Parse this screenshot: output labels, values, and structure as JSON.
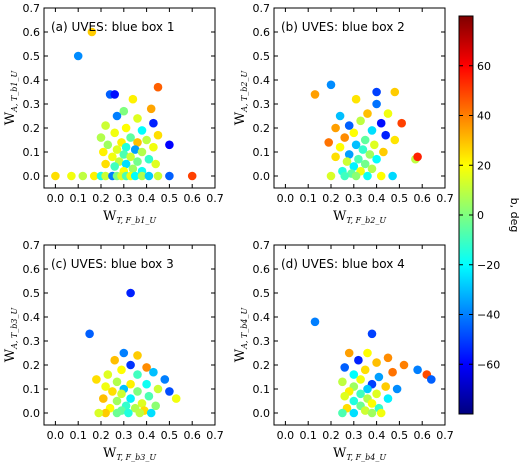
{
  "chart_data": [
    {
      "type": "scatter",
      "title": "(a) UVES: blue box 1",
      "xlabel": "W",
      "xlabel_sub": "T, F_b1_U",
      "ylabel": "W",
      "ylabel_sub": "A, T_b1_U",
      "xlim": [
        -0.05,
        0.7
      ],
      "ylim": [
        -0.05,
        0.7
      ],
      "xticks": [
        "0.0",
        "0.1",
        "0.2",
        "0.3",
        "0.4",
        "0.5",
        "0.6",
        "0.7"
      ],
      "yticks": [
        "0.0",
        "0.1",
        "0.2",
        "0.3",
        "0.4",
        "0.5",
        "0.6",
        "0.7"
      ],
      "points": [
        {
          "x": 0.16,
          "y": 0.6,
          "b": 28
        },
        {
          "x": 0.1,
          "y": 0.5,
          "b": -38
        },
        {
          "x": 0.45,
          "y": 0.37,
          "b": 45
        },
        {
          "x": 0.24,
          "y": 0.34,
          "b": -45
        },
        {
          "x": 0.26,
          "y": 0.34,
          "b": -58
        },
        {
          "x": 0.34,
          "y": 0.32,
          "b": 22
        },
        {
          "x": 0.42,
          "y": 0.28,
          "b": 34
        },
        {
          "x": 0.3,
          "y": 0.27,
          "b": 0
        },
        {
          "x": 0.27,
          "y": 0.25,
          "b": -40
        },
        {
          "x": 0.36,
          "y": 0.24,
          "b": 15
        },
        {
          "x": 0.43,
          "y": 0.22,
          "b": -55
        },
        {
          "x": 0.22,
          "y": 0.21,
          "b": 12
        },
        {
          "x": 0.31,
          "y": 0.2,
          "b": 20
        },
        {
          "x": 0.38,
          "y": 0.19,
          "b": -20
        },
        {
          "x": 0.26,
          "y": 0.18,
          "b": 18
        },
        {
          "x": 0.45,
          "y": 0.17,
          "b": 25
        },
        {
          "x": 0.2,
          "y": 0.16,
          "b": 8
        },
        {
          "x": 0.33,
          "y": 0.16,
          "b": -5
        },
        {
          "x": 0.4,
          "y": 0.15,
          "b": 10
        },
        {
          "x": 0.29,
          "y": 0.14,
          "b": 22
        },
        {
          "x": 0.36,
          "y": 0.14,
          "b": 30
        },
        {
          "x": 0.23,
          "y": 0.13,
          "b": 5
        },
        {
          "x": 0.5,
          "y": 0.13,
          "b": -60
        },
        {
          "x": 0.31,
          "y": 0.12,
          "b": -15
        },
        {
          "x": 0.43,
          "y": 0.12,
          "b": 18
        },
        {
          "x": 0.27,
          "y": 0.11,
          "b": 15
        },
        {
          "x": 0.35,
          "y": 0.11,
          "b": -35
        },
        {
          "x": 0.21,
          "y": 0.1,
          "b": 22
        },
        {
          "x": 0.38,
          "y": 0.1,
          "b": 8
        },
        {
          "x": 0.3,
          "y": 0.09,
          "b": -8
        },
        {
          "x": 0.25,
          "y": 0.08,
          "b": 18
        },
        {
          "x": 0.33,
          "y": 0.08,
          "b": 12
        },
        {
          "x": 0.41,
          "y": 0.07,
          "b": -12
        },
        {
          "x": 0.28,
          "y": 0.06,
          "b": 10
        },
        {
          "x": 0.36,
          "y": 0.06,
          "b": -2
        },
        {
          "x": 0.22,
          "y": 0.05,
          "b": 25
        },
        {
          "x": 0.31,
          "y": 0.05,
          "b": -25
        },
        {
          "x": 0.44,
          "y": 0.05,
          "b": 15
        },
        {
          "x": 0.26,
          "y": 0.04,
          "b": -10
        },
        {
          "x": 0.34,
          "y": 0.03,
          "b": 5
        },
        {
          "x": 0.38,
          "y": 0.02,
          "b": -18
        },
        {
          "x": 0.3,
          "y": 0.02,
          "b": 20
        },
        {
          "x": 0.0,
          "y": 0.0,
          "b": 25
        },
        {
          "x": 0.07,
          "y": 0.0,
          "b": 18
        },
        {
          "x": 0.12,
          "y": 0.0,
          "b": 10
        },
        {
          "x": 0.17,
          "y": 0.0,
          "b": 22
        },
        {
          "x": 0.2,
          "y": 0.0,
          "b": -15
        },
        {
          "x": 0.22,
          "y": 0.0,
          "b": 12
        },
        {
          "x": 0.25,
          "y": 0.0,
          "b": -40
        },
        {
          "x": 0.27,
          "y": 0.0,
          "b": 0
        },
        {
          "x": 0.29,
          "y": 0.0,
          "b": 15
        },
        {
          "x": 0.31,
          "y": 0.0,
          "b": -8
        },
        {
          "x": 0.33,
          "y": 0.0,
          "b": 18
        },
        {
          "x": 0.35,
          "y": 0.0,
          "b": -20
        },
        {
          "x": 0.38,
          "y": 0.0,
          "b": 8
        },
        {
          "x": 0.41,
          "y": 0.0,
          "b": -28
        },
        {
          "x": 0.45,
          "y": 0.0,
          "b": 12
        },
        {
          "x": 0.5,
          "y": 0.0,
          "b": -45
        },
        {
          "x": 0.6,
          "y": 0.0,
          "b": 50
        }
      ]
    },
    {
      "type": "scatter",
      "title": "(b) UVES: blue box 2",
      "xlabel": "W",
      "xlabel_sub": "T, F_b2_U",
      "ylabel": "W",
      "ylabel_sub": "A, T_b2_U",
      "xlim": [
        -0.05,
        0.7
      ],
      "ylim": [
        -0.05,
        0.7
      ],
      "xticks": [
        "0.0",
        "0.1",
        "0.2",
        "0.3",
        "0.4",
        "0.5",
        "0.6",
        "0.7"
      ],
      "yticks": [
        "0.0",
        "0.1",
        "0.2",
        "0.3",
        "0.4",
        "0.5",
        "0.6",
        "0.7"
      ],
      "points": [
        {
          "x": 0.2,
          "y": 0.38,
          "b": -38
        },
        {
          "x": 0.13,
          "y": 0.34,
          "b": 35
        },
        {
          "x": 0.4,
          "y": 0.35,
          "b": -50
        },
        {
          "x": 0.48,
          "y": 0.35,
          "b": 28
        },
        {
          "x": 0.31,
          "y": 0.32,
          "b": 24
        },
        {
          "x": 0.4,
          "y": 0.3,
          "b": -42
        },
        {
          "x": 0.36,
          "y": 0.26,
          "b": 30
        },
        {
          "x": 0.45,
          "y": 0.26,
          "b": 18
        },
        {
          "x": 0.24,
          "y": 0.25,
          "b": -30
        },
        {
          "x": 0.33,
          "y": 0.23,
          "b": 10
        },
        {
          "x": 0.42,
          "y": 0.22,
          "b": -58
        },
        {
          "x": 0.51,
          "y": 0.22,
          "b": 50
        },
        {
          "x": 0.28,
          "y": 0.21,
          "b": -45
        },
        {
          "x": 0.22,
          "y": 0.2,
          "b": 35
        },
        {
          "x": 0.38,
          "y": 0.19,
          "b": -25
        },
        {
          "x": 0.3,
          "y": 0.18,
          "b": 20
        },
        {
          "x": 0.44,
          "y": 0.17,
          "b": -55
        },
        {
          "x": 0.26,
          "y": 0.16,
          "b": 38
        },
        {
          "x": 0.35,
          "y": 0.15,
          "b": -5
        },
        {
          "x": 0.48,
          "y": 0.15,
          "b": 24
        },
        {
          "x": 0.19,
          "y": 0.14,
          "b": 42
        },
        {
          "x": 0.31,
          "y": 0.13,
          "b": -30
        },
        {
          "x": 0.39,
          "y": 0.13,
          "b": 15
        },
        {
          "x": 0.24,
          "y": 0.12,
          "b": 20
        },
        {
          "x": 0.34,
          "y": 0.11,
          "b": -12
        },
        {
          "x": 0.43,
          "y": 0.1,
          "b": 28
        },
        {
          "x": 0.28,
          "y": 0.09,
          "b": -35
        },
        {
          "x": 0.37,
          "y": 0.09,
          "b": 5
        },
        {
          "x": 0.22,
          "y": 0.08,
          "b": 25
        },
        {
          "x": 0.32,
          "y": 0.07,
          "b": -8
        },
        {
          "x": 0.4,
          "y": 0.07,
          "b": -20
        },
        {
          "x": 0.57,
          "y": 0.07,
          "b": 10
        },
        {
          "x": 0.58,
          "y": 0.08,
          "b": 55
        },
        {
          "x": 0.27,
          "y": 0.06,
          "b": 12
        },
        {
          "x": 0.35,
          "y": 0.05,
          "b": -2
        },
        {
          "x": 0.3,
          "y": 0.04,
          "b": -22
        },
        {
          "x": 0.38,
          "y": 0.03,
          "b": 8
        },
        {
          "x": 0.25,
          "y": 0.02,
          "b": -15
        },
        {
          "x": 0.33,
          "y": 0.02,
          "b": 18
        },
        {
          "x": 0.29,
          "y": 0.01,
          "b": -5
        },
        {
          "x": 0.36,
          "y": 0.0,
          "b": -18
        },
        {
          "x": 0.31,
          "y": 0.0,
          "b": 2
        },
        {
          "x": 0.42,
          "y": 0.0,
          "b": 20
        },
        {
          "x": 0.26,
          "y": 0.0,
          "b": -10
        },
        {
          "x": 0.2,
          "y": 0.0,
          "b": 14
        },
        {
          "x": 0.47,
          "y": 0.0,
          "b": -26
        }
      ]
    },
    {
      "type": "scatter",
      "title": "(c) UVES: blue box 3",
      "xlabel": "W",
      "xlabel_sub": "T, F_b3_U",
      "ylabel": "W",
      "ylabel_sub": "A, T_b3_U",
      "xlim": [
        -0.05,
        0.7
      ],
      "ylim": [
        -0.05,
        0.7
      ],
      "xticks": [
        "0.0",
        "0.1",
        "0.2",
        "0.3",
        "0.4",
        "0.5",
        "0.6",
        "0.7"
      ],
      "yticks": [
        "0.0",
        "0.1",
        "0.2",
        "0.3",
        "0.4",
        "0.5",
        "0.6",
        "0.7"
      ],
      "points": [
        {
          "x": 0.33,
          "y": 0.5,
          "b": -55
        },
        {
          "x": 0.15,
          "y": 0.33,
          "b": -45
        },
        {
          "x": 0.3,
          "y": 0.25,
          "b": -40
        },
        {
          "x": 0.36,
          "y": 0.24,
          "b": 28
        },
        {
          "x": 0.26,
          "y": 0.22,
          "b": 30
        },
        {
          "x": 0.33,
          "y": 0.2,
          "b": -52
        },
        {
          "x": 0.4,
          "y": 0.19,
          "b": 38
        },
        {
          "x": 0.29,
          "y": 0.18,
          "b": 20
        },
        {
          "x": 0.43,
          "y": 0.17,
          "b": -30
        },
        {
          "x": 0.23,
          "y": 0.16,
          "b": 15
        },
        {
          "x": 0.36,
          "y": 0.16,
          "b": -10
        },
        {
          "x": 0.18,
          "y": 0.14,
          "b": 25
        },
        {
          "x": 0.48,
          "y": 0.14,
          "b": -40
        },
        {
          "x": 0.27,
          "y": 0.13,
          "b": 8
        },
        {
          "x": 0.33,
          "y": 0.12,
          "b": 22
        },
        {
          "x": 0.4,
          "y": 0.12,
          "b": -18
        },
        {
          "x": 0.22,
          "y": 0.11,
          "b": 18
        },
        {
          "x": 0.3,
          "y": 0.1,
          "b": -30
        },
        {
          "x": 0.45,
          "y": 0.1,
          "b": 12
        },
        {
          "x": 0.25,
          "y": 0.09,
          "b": 25
        },
        {
          "x": 0.36,
          "y": 0.09,
          "b": 0
        },
        {
          "x": 0.5,
          "y": 0.09,
          "b": -48
        },
        {
          "x": 0.29,
          "y": 0.08,
          "b": 12
        },
        {
          "x": 0.41,
          "y": 0.07,
          "b": -8
        },
        {
          "x": 0.53,
          "y": 0.06,
          "b": 18
        },
        {
          "x": 0.21,
          "y": 0.06,
          "b": 30
        },
        {
          "x": 0.33,
          "y": 0.06,
          "b": -22
        },
        {
          "x": 0.27,
          "y": 0.05,
          "b": 5
        },
        {
          "x": 0.38,
          "y": 0.04,
          "b": 15
        },
        {
          "x": 0.31,
          "y": 0.03,
          "b": -12
        },
        {
          "x": 0.44,
          "y": 0.03,
          "b": 2
        },
        {
          "x": 0.24,
          "y": 0.02,
          "b": 20
        },
        {
          "x": 0.35,
          "y": 0.02,
          "b": 8
        },
        {
          "x": 0.29,
          "y": 0.01,
          "b": -5
        },
        {
          "x": 0.39,
          "y": 0.01,
          "b": 25
        },
        {
          "x": 0.22,
          "y": 0.0,
          "b": 28
        },
        {
          "x": 0.32,
          "y": 0.0,
          "b": -15
        },
        {
          "x": 0.37,
          "y": 0.0,
          "b": 10
        },
        {
          "x": 0.27,
          "y": 0.0,
          "b": -3
        },
        {
          "x": 0.42,
          "y": 0.0,
          "b": -25
        },
        {
          "x": 0.19,
          "y": 0.0,
          "b": 14
        }
      ]
    },
    {
      "type": "scatter",
      "title": "(d) UVES: blue box 4",
      "xlabel": "W",
      "xlabel_sub": "T, F_b4_U",
      "ylabel": "W",
      "ylabel_sub": "A, T_b4_U",
      "xlim": [
        -0.05,
        0.7
      ],
      "ylim": [
        -0.05,
        0.7
      ],
      "xticks": [
        "0.0",
        "0.1",
        "0.2",
        "0.3",
        "0.4",
        "0.5",
        "0.6",
        "0.7"
      ],
      "yticks": [
        "0.0",
        "0.1",
        "0.2",
        "0.3",
        "0.4",
        "0.5",
        "0.6",
        "0.7"
      ],
      "points": [
        {
          "x": 0.13,
          "y": 0.38,
          "b": -40
        },
        {
          "x": 0.38,
          "y": 0.33,
          "b": -50
        },
        {
          "x": 0.28,
          "y": 0.25,
          "b": 35
        },
        {
          "x": 0.36,
          "y": 0.25,
          "b": 20
        },
        {
          "x": 0.45,
          "y": 0.23,
          "b": 38
        },
        {
          "x": 0.32,
          "y": 0.22,
          "b": -55
        },
        {
          "x": 0.4,
          "y": 0.21,
          "b": 30
        },
        {
          "x": 0.52,
          "y": 0.2,
          "b": 40
        },
        {
          "x": 0.26,
          "y": 0.19,
          "b": -45
        },
        {
          "x": 0.35,
          "y": 0.18,
          "b": 25
        },
        {
          "x": 0.58,
          "y": 0.18,
          "b": -40
        },
        {
          "x": 0.47,
          "y": 0.17,
          "b": 42
        },
        {
          "x": 0.3,
          "y": 0.16,
          "b": -20
        },
        {
          "x": 0.62,
          "y": 0.16,
          "b": 48
        },
        {
          "x": 0.41,
          "y": 0.15,
          "b": -35
        },
        {
          "x": 0.64,
          "y": 0.14,
          "b": -45
        },
        {
          "x": 0.33,
          "y": 0.14,
          "b": 18
        },
        {
          "x": 0.25,
          "y": 0.13,
          "b": 10
        },
        {
          "x": 0.38,
          "y": 0.12,
          "b": -50
        },
        {
          "x": 0.44,
          "y": 0.11,
          "b": 28
        },
        {
          "x": 0.3,
          "y": 0.11,
          "b": 5
        },
        {
          "x": 0.36,
          "y": 0.1,
          "b": -28
        },
        {
          "x": 0.49,
          "y": 0.1,
          "b": -38
        },
        {
          "x": 0.28,
          "y": 0.09,
          "b": 22
        },
        {
          "x": 0.4,
          "y": 0.08,
          "b": 15
        },
        {
          "x": 0.33,
          "y": 0.08,
          "b": -10
        },
        {
          "x": 0.26,
          "y": 0.07,
          "b": 15
        },
        {
          "x": 0.45,
          "y": 0.06,
          "b": -22
        },
        {
          "x": 0.36,
          "y": 0.06,
          "b": 8
        },
        {
          "x": 0.3,
          "y": 0.05,
          "b": -15
        },
        {
          "x": 0.38,
          "y": 0.04,
          "b": 20
        },
        {
          "x": 0.33,
          "y": 0.03,
          "b": -3
        },
        {
          "x": 0.27,
          "y": 0.02,
          "b": 25
        },
        {
          "x": 0.41,
          "y": 0.02,
          "b": -12
        },
        {
          "x": 0.35,
          "y": 0.01,
          "b": 12
        },
        {
          "x": 0.3,
          "y": 0.0,
          "b": -25
        },
        {
          "x": 0.38,
          "y": 0.0,
          "b": 5
        },
        {
          "x": 0.42,
          "y": 0.0,
          "b": 18
        },
        {
          "x": 0.25,
          "y": 0.0,
          "b": -8
        }
      ]
    }
  ],
  "colorbar": {
    "label": "b, deg",
    "min": -80,
    "max": 80,
    "ticks": [
      60,
      40,
      20,
      0,
      -20,
      -40,
      -60
    ],
    "tick_labels": [
      "60",
      "40",
      "20",
      "0",
      "−20",
      "−40",
      "−60"
    ],
    "colormap": [
      "#00007f",
      "#0000ff",
      "#007fff",
      "#00ffff",
      "#7fff7f",
      "#ffff00",
      "#ff7f00",
      "#ff0000",
      "#7f0000"
    ]
  }
}
